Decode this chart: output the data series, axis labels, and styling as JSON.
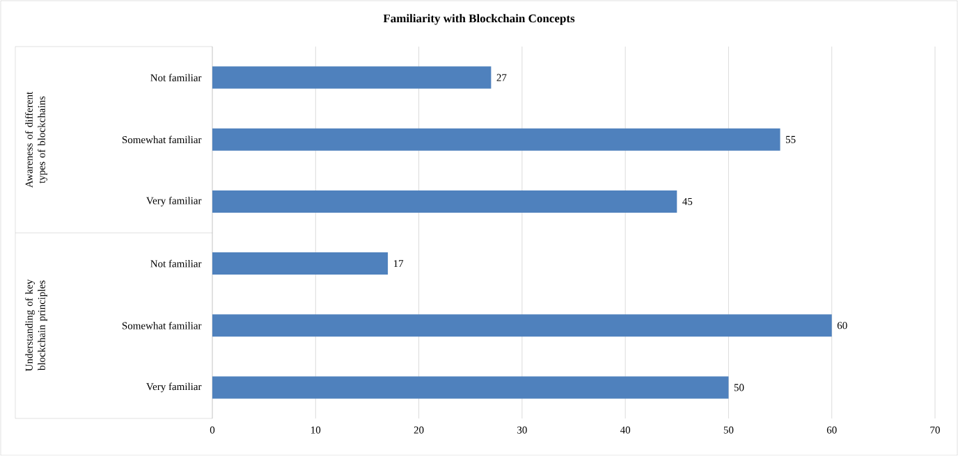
{
  "chart_data": {
    "type": "bar",
    "orientation": "horizontal",
    "title": "Familiarity with Blockchain Concepts",
    "categories": [
      "Not familiar",
      "Somewhat familiar",
      "Very familiar",
      "Not familiar",
      "Somewhat familiar",
      "Very familiar"
    ],
    "values": [
      27,
      55,
      45,
      17,
      60,
      50
    ],
    "color": "#4f81bd",
    "xlim": [
      0,
      70
    ],
    "xticks": [
      0,
      10,
      20,
      30,
      40,
      50,
      60,
      70
    ],
    "grid": "x",
    "data_labels": true,
    "annotations": [
      "Awareness of different types of blockchains",
      "Understanding of key blockchain principles"
    ]
  }
}
